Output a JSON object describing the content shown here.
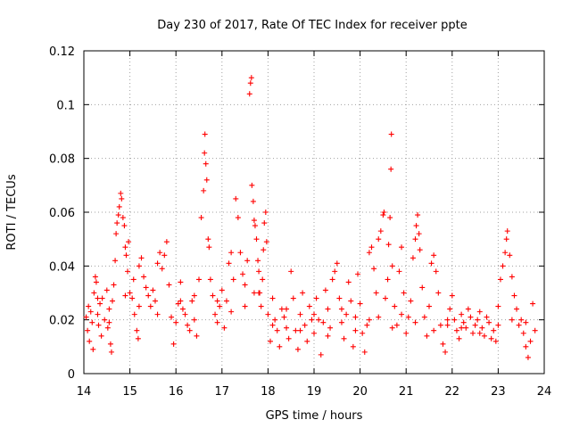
{
  "chart_data": {
    "type": "scatter",
    "title": "Day 230 of 2017, Rate Of TEC Index for receiver ppte",
    "xlabel": "GPS time / hours",
    "ylabel": "ROTI / TECUs",
    "xlim": [
      14,
      24
    ],
    "ylim": [
      0,
      0.12
    ],
    "x_ticks": [
      "14",
      "15",
      "16",
      "17",
      "18",
      "19",
      "20",
      "21",
      "22",
      "23",
      "24"
    ],
    "y_ticks": [
      "0",
      "0.02",
      "0.04",
      "0.06",
      "0.08",
      "0.1",
      "0.12"
    ],
    "grid": true,
    "marker": "+",
    "color": "#ff0000",
    "series": [
      {
        "points": [
          [
            14.05,
            0.021
          ],
          [
            14.08,
            0.016
          ],
          [
            14.1,
            0.025
          ],
          [
            14.12,
            0.012
          ],
          [
            14.15,
            0.023
          ],
          [
            14.18,
            0.019
          ],
          [
            14.2,
            0.009
          ],
          [
            14.22,
            0.03
          ],
          [
            14.25,
            0.036
          ],
          [
            14.27,
            0.034
          ],
          [
            14.3,
            0.022
          ],
          [
            14.32,
            0.018
          ],
          [
            14.35,
            0.026
          ],
          [
            14.38,
            0.014
          ],
          [
            14.4,
            0.028
          ],
          [
            14.45,
            0.02
          ],
          [
            14.5,
            0.031
          ],
          [
            14.52,
            0.017
          ],
          [
            14.55,
            0.024
          ],
          [
            14.58,
            0.011
          ],
          [
            14.6,
            0.008
          ],
          [
            14.62,
            0.027
          ],
          [
            14.65,
            0.033
          ],
          [
            14.68,
            0.042
          ],
          [
            14.7,
            0.052
          ],
          [
            14.72,
            0.056
          ],
          [
            14.75,
            0.059
          ],
          [
            14.77,
            0.062
          ],
          [
            14.8,
            0.067
          ],
          [
            14.82,
            0.065
          ],
          [
            14.85,
            0.058
          ],
          [
            14.88,
            0.055
          ],
          [
            14.9,
            0.047
          ],
          [
            14.92,
            0.044
          ],
          [
            14.95,
            0.038
          ],
          [
            14.97,
            0.049
          ],
          [
            15.0,
            0.03
          ],
          [
            15.05,
            0.028
          ],
          [
            15.08,
            0.035
          ],
          [
            15.1,
            0.022
          ],
          [
            15.15,
            0.016
          ],
          [
            15.18,
            0.013
          ],
          [
            15.2,
            0.04
          ],
          [
            15.25,
            0.043
          ],
          [
            15.3,
            0.036
          ],
          [
            15.35,
            0.032
          ],
          [
            15.4,
            0.029
          ],
          [
            15.45,
            0.025
          ],
          [
            15.5,
            0.031
          ],
          [
            15.55,
            0.027
          ],
          [
            15.6,
            0.041
          ],
          [
            15.65,
            0.045
          ],
          [
            15.7,
            0.039
          ],
          [
            15.75,
            0.044
          ],
          [
            15.8,
            0.049
          ],
          [
            15.85,
            0.033
          ],
          [
            15.9,
            0.021
          ],
          [
            15.95,
            0.011
          ],
          [
            16.0,
            0.019
          ],
          [
            16.05,
            0.026
          ],
          [
            16.1,
            0.034
          ],
          [
            16.15,
            0.024
          ],
          [
            16.2,
            0.022
          ],
          [
            16.25,
            0.018
          ],
          [
            16.3,
            0.016
          ],
          [
            16.35,
            0.027
          ],
          [
            16.4,
            0.02
          ],
          [
            16.45,
            0.014
          ],
          [
            16.5,
            0.035
          ],
          [
            16.55,
            0.058
          ],
          [
            16.6,
            0.068
          ],
          [
            16.62,
            0.082
          ],
          [
            16.63,
            0.089
          ],
          [
            16.65,
            0.078
          ],
          [
            16.67,
            0.072
          ],
          [
            16.7,
            0.05
          ],
          [
            16.72,
            0.047
          ],
          [
            16.75,
            0.035
          ],
          [
            16.8,
            0.029
          ],
          [
            16.85,
            0.022
          ],
          [
            16.9,
            0.019
          ],
          [
            16.95,
            0.025
          ],
          [
            17.0,
            0.031
          ],
          [
            17.05,
            0.017
          ],
          [
            17.1,
            0.027
          ],
          [
            17.15,
            0.041
          ],
          [
            17.2,
            0.045
          ],
          [
            17.25,
            0.035
          ],
          [
            17.3,
            0.065
          ],
          [
            17.35,
            0.058
          ],
          [
            17.4,
            0.045
          ],
          [
            17.45,
            0.037
          ],
          [
            17.5,
            0.033
          ],
          [
            17.55,
            0.042
          ],
          [
            17.6,
            0.104
          ],
          [
            17.62,
            0.108
          ],
          [
            17.64,
            0.11
          ],
          [
            17.65,
            0.07
          ],
          [
            17.68,
            0.064
          ],
          [
            17.7,
            0.057
          ],
          [
            17.72,
            0.055
          ],
          [
            17.75,
            0.05
          ],
          [
            17.78,
            0.042
          ],
          [
            17.8,
            0.038
          ],
          [
            17.82,
            0.03
          ],
          [
            17.85,
            0.025
          ],
          [
            17.88,
            0.035
          ],
          [
            17.9,
            0.046
          ],
          [
            17.92,
            0.056
          ],
          [
            17.95,
            0.06
          ],
          [
            17.97,
            0.049
          ],
          [
            18.0,
            0.022
          ],
          [
            18.05,
            0.012
          ],
          [
            18.1,
            0.018
          ],
          [
            18.15,
            0.02
          ],
          [
            18.2,
            0.016
          ],
          [
            18.25,
            0.01
          ],
          [
            18.3,
            0.024
          ],
          [
            18.35,
            0.021
          ],
          [
            18.4,
            0.017
          ],
          [
            18.45,
            0.013
          ],
          [
            18.5,
            0.038
          ],
          [
            18.55,
            0.028
          ],
          [
            18.6,
            0.016
          ],
          [
            18.65,
            0.009
          ],
          [
            18.7,
            0.022
          ],
          [
            18.75,
            0.03
          ],
          [
            18.8,
            0.018
          ],
          [
            18.85,
            0.012
          ],
          [
            18.9,
            0.025
          ],
          [
            18.95,
            0.02
          ],
          [
            19.0,
            0.015
          ],
          [
            19.05,
            0.028
          ],
          [
            19.1,
            0.02
          ],
          [
            19.15,
            0.007
          ],
          [
            19.2,
            0.019
          ],
          [
            19.25,
            0.031
          ],
          [
            19.3,
            0.024
          ],
          [
            19.35,
            0.017
          ],
          [
            19.4,
            0.035
          ],
          [
            19.45,
            0.038
          ],
          [
            19.5,
            0.041
          ],
          [
            19.55,
            0.028
          ],
          [
            19.6,
            0.019
          ],
          [
            19.65,
            0.013
          ],
          [
            19.7,
            0.022
          ],
          [
            19.75,
            0.034
          ],
          [
            19.8,
            0.027
          ],
          [
            19.85,
            0.01
          ],
          [
            19.9,
            0.021
          ],
          [
            19.95,
            0.037
          ],
          [
            20.0,
            0.026
          ],
          [
            20.05,
            0.015
          ],
          [
            20.1,
            0.008
          ],
          [
            20.15,
            0.018
          ],
          [
            20.2,
            0.045
          ],
          [
            20.25,
            0.047
          ],
          [
            20.3,
            0.039
          ],
          [
            20.35,
            0.03
          ],
          [
            20.4,
            0.05
          ],
          [
            20.45,
            0.053
          ],
          [
            20.5,
            0.059
          ],
          [
            20.52,
            0.06
          ],
          [
            20.55,
            0.028
          ],
          [
            20.6,
            0.035
          ],
          [
            20.62,
            0.048
          ],
          [
            20.65,
            0.058
          ],
          [
            20.67,
            0.076
          ],
          [
            20.68,
            0.089
          ],
          [
            20.7,
            0.04
          ],
          [
            20.75,
            0.025
          ],
          [
            20.8,
            0.018
          ],
          [
            20.85,
            0.038
          ],
          [
            20.9,
            0.047
          ],
          [
            20.95,
            0.03
          ],
          [
            21.0,
            0.015
          ],
          [
            21.05,
            0.021
          ],
          [
            21.1,
            0.027
          ],
          [
            21.15,
            0.043
          ],
          [
            21.2,
            0.05
          ],
          [
            21.22,
            0.055
          ],
          [
            21.25,
            0.059
          ],
          [
            21.28,
            0.052
          ],
          [
            21.3,
            0.046
          ],
          [
            21.35,
            0.032
          ],
          [
            21.4,
            0.021
          ],
          [
            21.45,
            0.014
          ],
          [
            21.5,
            0.025
          ],
          [
            21.55,
            0.041
          ],
          [
            21.6,
            0.044
          ],
          [
            21.65,
            0.038
          ],
          [
            21.7,
            0.03
          ],
          [
            21.75,
            0.018
          ],
          [
            21.8,
            0.011
          ],
          [
            21.85,
            0.008
          ],
          [
            21.9,
            0.02
          ],
          [
            21.95,
            0.024
          ],
          [
            22.0,
            0.029
          ],
          [
            22.05,
            0.02
          ],
          [
            22.1,
            0.016
          ],
          [
            22.15,
            0.013
          ],
          [
            22.2,
            0.022
          ],
          [
            22.25,
            0.019
          ],
          [
            22.3,
            0.017
          ],
          [
            22.35,
            0.024
          ],
          [
            22.4,
            0.021
          ],
          [
            22.45,
            0.015
          ],
          [
            22.5,
            0.018
          ],
          [
            22.55,
            0.02
          ],
          [
            22.6,
            0.023
          ],
          [
            22.65,
            0.017
          ],
          [
            22.7,
            0.014
          ],
          [
            22.75,
            0.021
          ],
          [
            22.8,
            0.019
          ],
          [
            22.85,
            0.013
          ],
          [
            22.9,
            0.016
          ],
          [
            22.95,
            0.012
          ],
          [
            23.0,
            0.025
          ],
          [
            23.05,
            0.035
          ],
          [
            23.1,
            0.04
          ],
          [
            23.15,
            0.045
          ],
          [
            23.18,
            0.05
          ],
          [
            23.2,
            0.053
          ],
          [
            23.25,
            0.044
          ],
          [
            23.3,
            0.036
          ],
          [
            23.35,
            0.029
          ],
          [
            23.4,
            0.024
          ],
          [
            23.45,
            0.018
          ],
          [
            23.5,
            0.02
          ],
          [
            23.55,
            0.015
          ],
          [
            23.6,
            0.01
          ],
          [
            23.65,
            0.006
          ],
          [
            23.7,
            0.012
          ],
          [
            23.75,
            0.026
          ],
          [
            23.8,
            0.016
          ],
          [
            14.3,
            0.028
          ],
          [
            14.55,
            0.019
          ],
          [
            14.9,
            0.029
          ],
          [
            15.2,
            0.025
          ],
          [
            15.6,
            0.022
          ],
          [
            16.1,
            0.027
          ],
          [
            16.4,
            0.029
          ],
          [
            16.9,
            0.027
          ],
          [
            17.2,
            0.023
          ],
          [
            17.5,
            0.025
          ],
          [
            17.7,
            0.03
          ],
          [
            17.8,
            0.03
          ],
          [
            18.1,
            0.028
          ],
          [
            18.4,
            0.024
          ],
          [
            18.7,
            0.016
          ],
          [
            19.0,
            0.022
          ],
          [
            19.3,
            0.014
          ],
          [
            19.6,
            0.024
          ],
          [
            19.9,
            0.016
          ],
          [
            20.2,
            0.02
          ],
          [
            20.4,
            0.021
          ],
          [
            20.7,
            0.017
          ],
          [
            20.9,
            0.022
          ],
          [
            21.2,
            0.019
          ],
          [
            21.6,
            0.016
          ],
          [
            21.9,
            0.018
          ],
          [
            22.2,
            0.017
          ],
          [
            22.6,
            0.015
          ],
          [
            23.0,
            0.018
          ],
          [
            23.3,
            0.02
          ],
          [
            23.6,
            0.019
          ]
        ]
      }
    ]
  }
}
